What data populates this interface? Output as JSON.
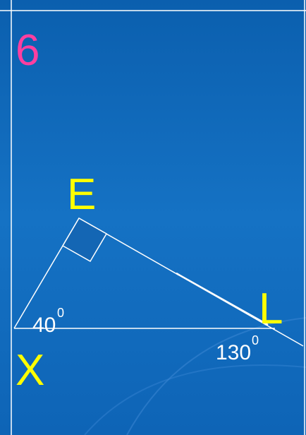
{
  "slide_number": "6",
  "vertices": [
    {
      "label": "E"
    },
    {
      "label": "X"
    },
    {
      "label": "L"
    }
  ],
  "angles": [
    {
      "value": "40",
      "degree": "0"
    },
    {
      "value": "130",
      "degree": "0"
    }
  ]
}
